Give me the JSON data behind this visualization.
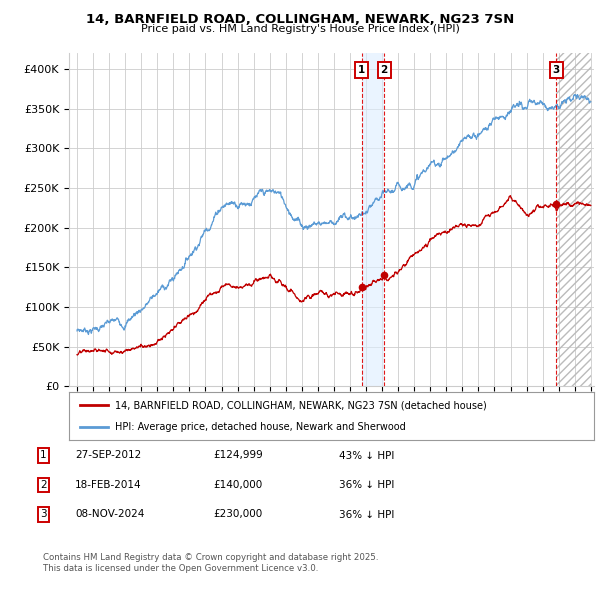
{
  "title": "14, BARNFIELD ROAD, COLLINGHAM, NEWARK, NG23 7SN",
  "subtitle": "Price paid vs. HM Land Registry's House Price Index (HPI)",
  "ylim": [
    0,
    420000
  ],
  "yticks": [
    0,
    50000,
    100000,
    150000,
    200000,
    250000,
    300000,
    350000,
    400000
  ],
  "ytick_labels": [
    "£0",
    "£50K",
    "£100K",
    "£150K",
    "£200K",
    "£250K",
    "£300K",
    "£350K",
    "£400K"
  ],
  "xlim_start": 1994.5,
  "xlim_end": 2027.2,
  "hpi_color": "#5b9bd5",
  "price_color": "#c00000",
  "transactions": [
    {
      "num": 1,
      "date": "27-SEP-2012",
      "year": 2012.74,
      "price": 124999,
      "pct": "43%",
      "dir": "↓"
    },
    {
      "num": 2,
      "date": "18-FEB-2014",
      "year": 2014.13,
      "price": 140000,
      "pct": "36%",
      "dir": "↓"
    },
    {
      "num": 3,
      "date": "08-NOV-2024",
      "year": 2024.85,
      "price": 230000,
      "pct": "36%",
      "dir": "↓"
    }
  ],
  "legend_property": "14, BARNFIELD ROAD, COLLINGHAM, NEWARK, NG23 7SN (detached house)",
  "legend_hpi": "HPI: Average price, detached house, Newark and Sherwood",
  "copyright": "Contains HM Land Registry data © Crown copyright and database right 2025.\nThis data is licensed under the Open Government Licence v3.0.",
  "background_color": "#ffffff",
  "grid_color": "#cccccc",
  "shade_color": "#ddeeff",
  "hatch_color": "#cccccc"
}
